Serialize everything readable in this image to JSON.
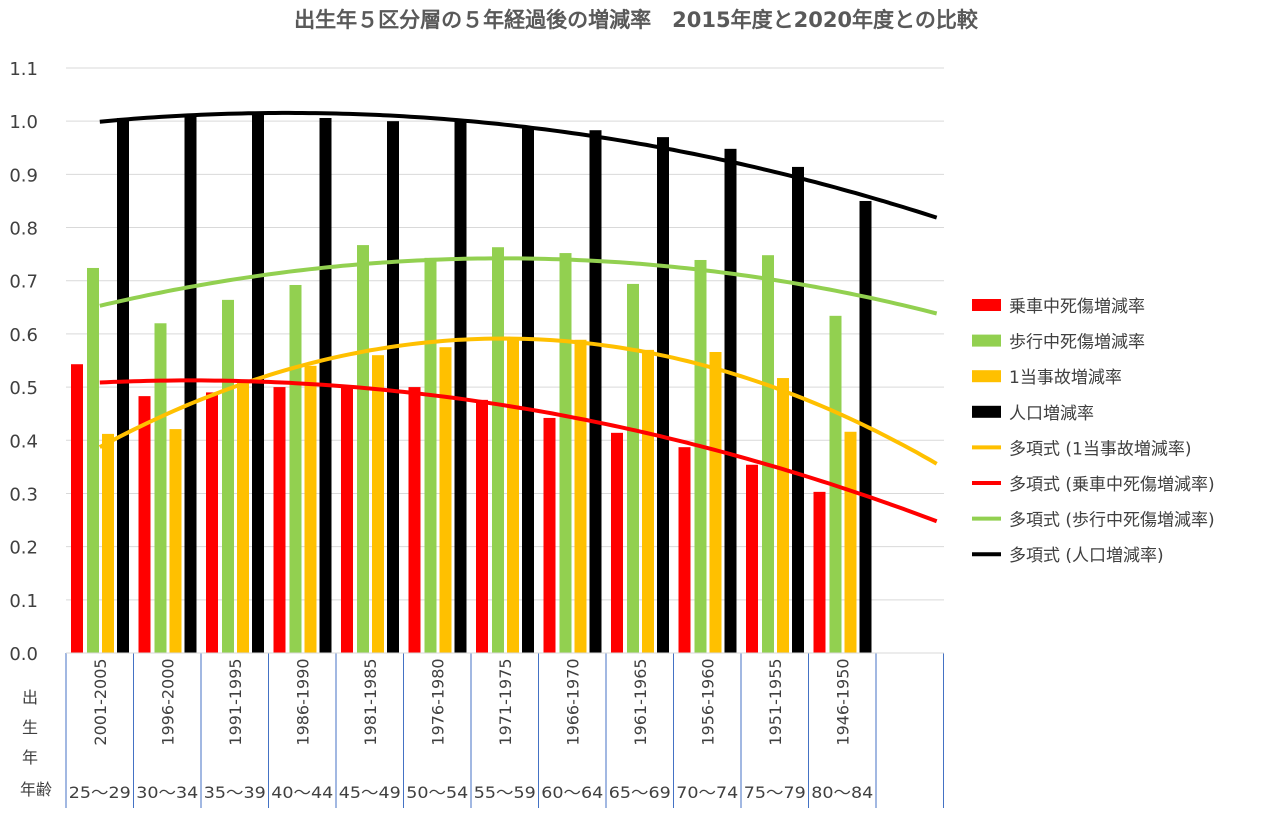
{
  "chart_data": {
    "type": "bar",
    "title": "出生年５区分層の５年経過後の増減率　2015年度と2020年度との比較",
    "ylim": [
      0,
      1.1
    ],
    "yticks": [
      "0.0",
      "0.1",
      "0.2",
      "0.3",
      "0.4",
      "0.5",
      "0.6",
      "0.7",
      "0.8",
      "0.9",
      "1.0",
      "1.1"
    ],
    "grid": true,
    "legend_position": "right",
    "row_labels": {
      "birth_year": [
        "出",
        "生",
        "年"
      ],
      "age": "年齢"
    },
    "categories": [
      "2001-2005",
      "1996-2000",
      "1991-1995",
      "1986-1990",
      "1981-1985",
      "1976-1980",
      "1971-1975",
      "1966-1970",
      "1961-1965",
      "1956-1960",
      "1951-1955",
      "1946-1950"
    ],
    "ages": [
      "25〜29",
      "30〜34",
      "35〜39",
      "40〜44",
      "45〜49",
      "50〜54",
      "55〜59",
      "60〜64",
      "65〜69",
      "70〜74",
      "75〜79",
      "80〜84"
    ],
    "series": [
      {
        "name": "乗車中死傷増減率",
        "color": "#FF0000",
        "values": [
          0.543,
          0.483,
          0.49,
          0.5,
          0.5,
          0.5,
          0.476,
          0.442,
          0.414,
          0.387,
          0.354,
          0.303
        ]
      },
      {
        "name": "歩行中死傷増減率",
        "color": "#92D050",
        "values": [
          0.724,
          0.62,
          0.664,
          0.692,
          0.767,
          0.743,
          0.763,
          0.752,
          0.694,
          0.739,
          0.748,
          0.634
        ]
      },
      {
        "name": "1当事故増減率",
        "color": "#FFC000",
        "values": [
          0.412,
          0.421,
          0.508,
          0.54,
          0.56,
          0.575,
          0.589,
          0.589,
          0.57,
          0.566,
          0.517,
          0.416
        ]
      },
      {
        "name": "人口増減率",
        "color": "#000000",
        "values": [
          1.006,
          1.012,
          1.015,
          1.006,
          1.0,
          1.0,
          0.989,
          0.983,
          0.97,
          0.948,
          0.914,
          0.85
        ]
      }
    ],
    "trendlines": [
      {
        "name": "多項式 (1当事故増減率)",
        "series": 2,
        "color": "#FFC000",
        "order": 2
      },
      {
        "name": "多項式 (乗車中死傷増減率)",
        "series": 0,
        "color": "#FF0000",
        "order": 2
      },
      {
        "name": "多項式 (歩行中死傷増減率)",
        "series": 1,
        "color": "#92D050",
        "order": 2
      },
      {
        "name": "多項式 (人口増減率)",
        "series": 3,
        "color": "#000000",
        "order": 2
      }
    ]
  }
}
